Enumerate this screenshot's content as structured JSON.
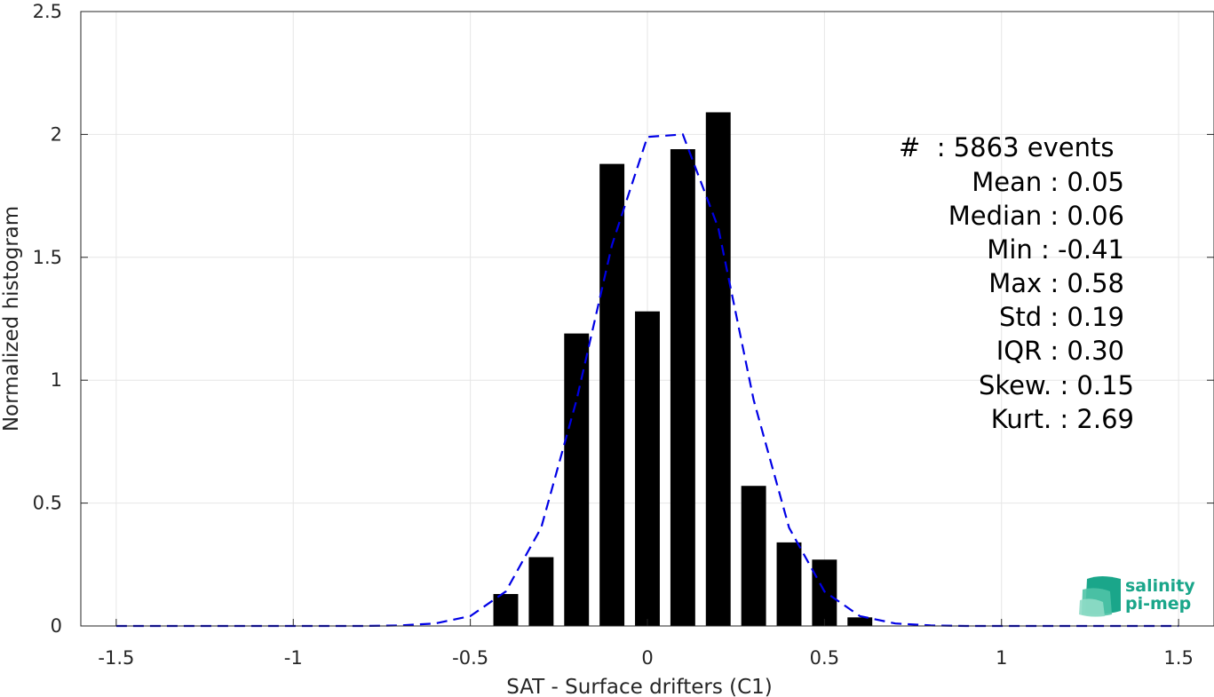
{
  "chart_data": {
    "type": "bar",
    "xlabel": "SAT - Surface drifters (C1)",
    "ylabel": "Normalized histogram",
    "xlim": [
      -1.6,
      1.6
    ],
    "ylim": [
      0,
      2.5
    ],
    "xticks": [
      -1.5,
      -1,
      -0.5,
      0,
      0.5,
      1,
      1.5
    ],
    "xtick_labels": [
      "-1.5",
      "-1",
      "-0.5",
      "0",
      "0.5",
      "1",
      "1.5"
    ],
    "yticks": [
      0,
      0.5,
      1,
      1.5,
      2,
      2.5
    ],
    "ytick_labels": [
      "0",
      "0.5",
      "1",
      "1.5",
      "2",
      "2.5"
    ],
    "grid": true,
    "histogram": {
      "bin_centers": [
        -0.4,
        -0.3,
        -0.2,
        -0.1,
        0.0,
        0.1,
        0.2,
        0.3,
        0.4,
        0.5,
        0.6
      ],
      "values": [
        0.13,
        0.28,
        1.19,
        1.88,
        1.28,
        1.94,
        2.09,
        0.57,
        0.34,
        0.27,
        0.035
      ],
      "bar_width": 0.07,
      "color": "#000000"
    },
    "fit_curve": {
      "style": "dashed",
      "color": "#0000e6",
      "x": [
        -1.5,
        -1.4,
        -1.3,
        -1.2,
        -1.1,
        -1.0,
        -0.9,
        -0.8,
        -0.7,
        -0.6,
        -0.5,
        -0.4,
        -0.3,
        -0.2,
        -0.1,
        0.0,
        0.1,
        0.2,
        0.3,
        0.4,
        0.5,
        0.6,
        0.7,
        0.8,
        0.9,
        1.0,
        1.1,
        1.2,
        1.3,
        1.4,
        1.5
      ],
      "y": [
        0,
        0,
        0,
        0,
        0,
        0,
        0,
        0,
        0.002,
        0.01,
        0.04,
        0.14,
        0.4,
        0.92,
        1.55,
        1.99,
        2.0,
        1.62,
        0.92,
        0.4,
        0.14,
        0.04,
        0.01,
        0.002,
        0,
        0,
        0,
        0,
        0,
        0,
        0
      ]
    },
    "annotations": [
      "#  : 5863 events",
      "Mean : 0.05",
      "Median : 0.06",
      "Min : -0.41",
      "Max : 0.58",
      "Std : 0.19",
      "IQR : 0.30",
      "Skew. : 0.15",
      "Kurt. : 2.69"
    ]
  },
  "logo": {
    "line1": "salinity",
    "line2": "pi-mep",
    "color": "#1aa68a"
  }
}
